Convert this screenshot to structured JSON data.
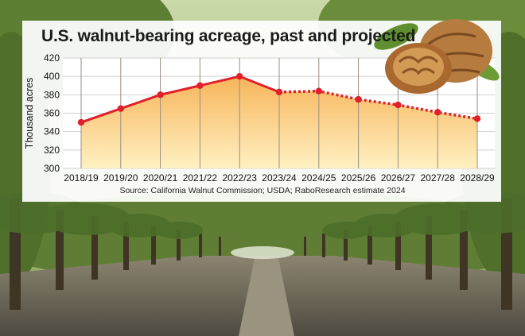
{
  "chart_data": {
    "type": "line",
    "title": "U.S. walnut-bearing acreage, past and projected",
    "ylabel": "Thousand acres",
    "xlabel": "",
    "categories": [
      "2018/19",
      "2019/20",
      "2020/21",
      "2021/22",
      "2022/23",
      "2023/24",
      "2024/25",
      "2025/26",
      "2026/27",
      "2027/28",
      "2028/29"
    ],
    "values": [
      350,
      365,
      380,
      390,
      400,
      383,
      384,
      375,
      369,
      361,
      354
    ],
    "actual_through": "2023/24",
    "projected_from": "2023/24",
    "ylim": [
      300,
      420
    ],
    "yticks": [
      300,
      320,
      340,
      360,
      380,
      400,
      420
    ],
    "grid": true,
    "line_color": "#e0202a",
    "fill_top_color": "#f7b45a",
    "fill_bottom_color": "#fff1c2",
    "source": "Source: California Walnut Commission; USDA; RaboResearch estimate 2024"
  }
}
